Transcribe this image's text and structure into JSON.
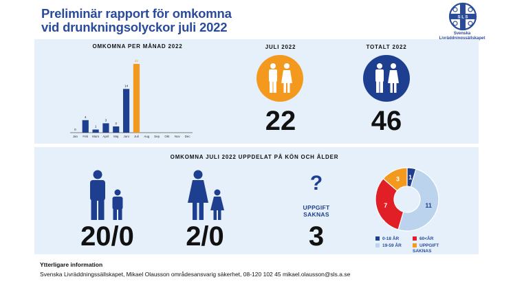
{
  "header": {
    "title_line1": "Preliminär rapport för omkomna",
    "title_line2": "vid drunkningsolyckor juli 2022",
    "logo_text_line1": "Svenska",
    "logo_text_line2": "Livräddningssällskapet",
    "logo_letters": "S L S"
  },
  "top": {
    "chart_heading": "OMKOMNA PER MÅNAD 2022",
    "july_heading": "JULI 2022",
    "july_value": "22",
    "total_heading": "TOTALT 2022",
    "total_value": "46"
  },
  "bottom": {
    "heading": "OMKOMNA JULI 2022 UPPDELAT PÅ KÖN OCH ÅLDER",
    "men_value": "20/0",
    "women_value": "2/0",
    "unknown_label_1": "UPPGIFT",
    "unknown_label_2": "SAKNAS",
    "unknown_value": "3",
    "question_mark": "?"
  },
  "legend": {
    "items": [
      {
        "label": "0-18 ÅR",
        "color": "#1e3f8f"
      },
      {
        "label": "60<ÅR",
        "color": "#e01f26"
      },
      {
        "label": "19-59 ÅR",
        "color": "#bcd3ee"
      },
      {
        "label": "UPPGIFT SAKNAS",
        "color": "#f39a1e"
      }
    ]
  },
  "footer": {
    "heading": "Ytterligare information",
    "text": "Svenska Livräddningssällskapet, Mikael Olausson områdesansvarig säkerhet, 08-120 102 45 mikael.olausson@sls.a.se"
  },
  "colors": {
    "navy": "#1e3f8f",
    "orange": "#f39a1e",
    "red": "#e01f26",
    "lightblue": "#bcd3ee",
    "panel": "#e5f0fa"
  },
  "chart_data": [
    {
      "type": "bar",
      "title": "OMKOMNA PER MÅNAD 2022",
      "categories": [
        "Jan",
        "Feb",
        "Mars",
        "April",
        "Maj",
        "Juni",
        "Juli",
        "Aug",
        "Sep",
        "Okt",
        "Nov",
        "Dec"
      ],
      "values": [
        0,
        4,
        1,
        3,
        2,
        14,
        22,
        null,
        null,
        null,
        null,
        null
      ],
      "value_labels": [
        "0",
        "4",
        "1",
        "3",
        "2",
        "14",
        "22",
        "",
        "",
        "",
        "",
        ""
      ],
      "highlight_category": "Juli",
      "colors": {
        "default": "#1e3f8f",
        "highlight": "#f39a1e"
      },
      "ylim": [
        0,
        22
      ],
      "grid": false
    },
    {
      "type": "pie",
      "style": "donut",
      "labels": [
        "0-18 ÅR",
        "19-59 ÅR",
        "60<ÅR",
        "UPPGIFT SAKNAS"
      ],
      "values": [
        1,
        11,
        7,
        3
      ],
      "colors": [
        "#1e3f8f",
        "#bcd3ee",
        "#e01f26",
        "#f39a1e"
      ]
    }
  ]
}
